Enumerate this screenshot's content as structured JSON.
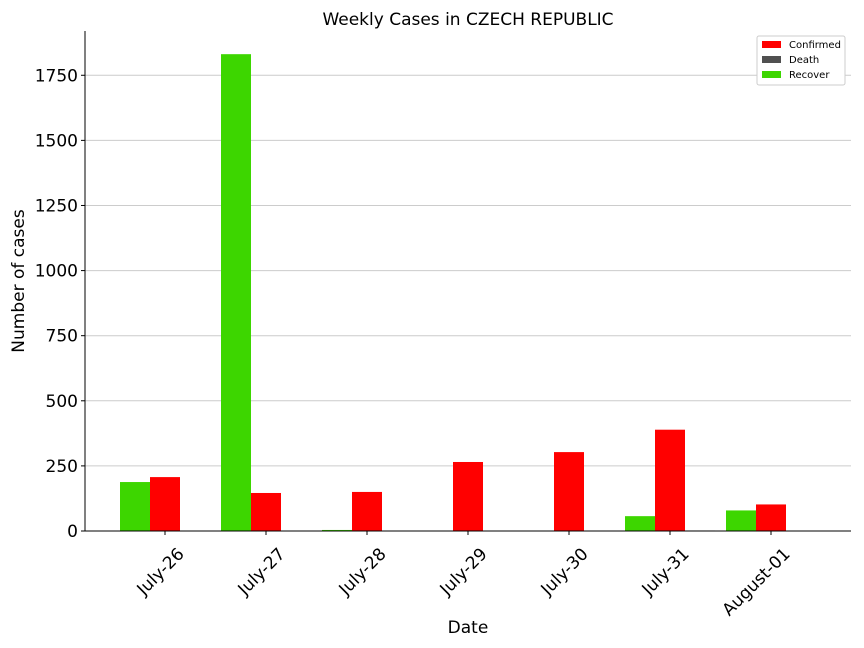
{
  "chart_data": {
    "type": "bar",
    "title": "Weekly Cases in CZECH REPUBLIC",
    "xlabel": "Date",
    "ylabel": "Number of cases",
    "categories": [
      "July-26",
      "July-27",
      "July-28",
      "July-29",
      "July-30",
      "July-31",
      "August-01"
    ],
    "yticks": [
      0,
      250,
      500,
      750,
      1000,
      1250,
      1500,
      1750
    ],
    "ylim": [
      0,
      1920
    ],
    "grid": "horizontal",
    "legend_position": "top-right",
    "series": [
      {
        "name": "Recover",
        "color": "#3dd600",
        "values": [
          188,
          1831,
          4,
          0,
          0,
          57,
          79
        ]
      },
      {
        "name": "Confirmed",
        "color": "#ff0000",
        "values": [
          207,
          146,
          150,
          265,
          303,
          389,
          102
        ]
      },
      {
        "name": "Death",
        "color": "#505050",
        "values": [
          0,
          0,
          0,
          0,
          0,
          2,
          0
        ]
      }
    ],
    "legend": [
      "Confirmed",
      "Death",
      "Recover"
    ]
  }
}
